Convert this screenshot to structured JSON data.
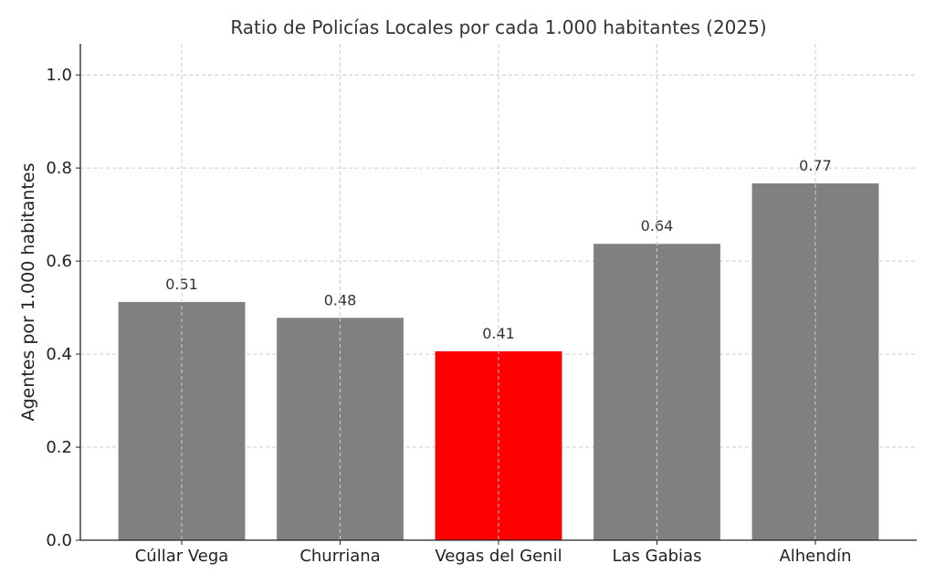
{
  "chart_data": {
    "type": "bar",
    "title": "Ratio de Policías Locales por cada 1.000 habitantes (2025)",
    "xlabel": "",
    "ylabel": "Agentes por 1.000 habitantes",
    "categories": [
      "Cúllar Vega",
      "Churriana",
      "Vegas del Genil",
      "Las Gabias",
      "Alhendín"
    ],
    "values": [
      0.512,
      0.478,
      0.406,
      0.637,
      0.767
    ],
    "data_labels": [
      "0.51",
      "0.48",
      "0.41",
      "0.64",
      "0.77"
    ],
    "colors": [
      "#808080",
      "#808080",
      "#ff0000",
      "#808080",
      "#808080"
    ],
    "ylim": [
      0,
      1.067
    ],
    "yticks": [
      0.0,
      0.2,
      0.4,
      0.6,
      0.8,
      1.0
    ],
    "ytick_labels": [
      "0.0",
      "0.2",
      "0.4",
      "0.6",
      "0.8",
      "1.0"
    ],
    "grid": true,
    "grid_style": "dashed"
  }
}
